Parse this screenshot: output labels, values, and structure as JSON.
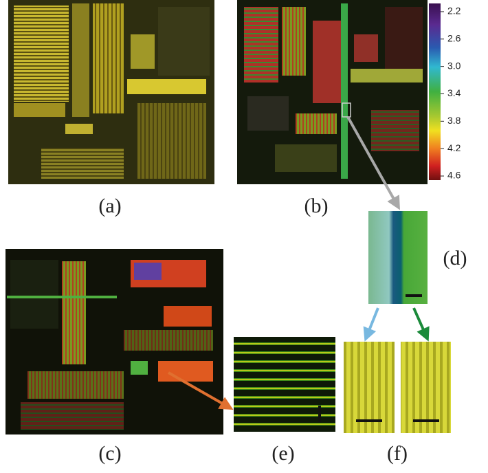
{
  "panels": [
    {
      "label": "(a)"
    },
    {
      "label": "(b)"
    },
    {
      "label": "(c)"
    },
    {
      "label": "(d)"
    },
    {
      "label": "(e)"
    },
    {
      "label": "(f)"
    }
  ],
  "colorbar": {
    "ylim": [
      2.08,
      4.66
    ],
    "ticks": [
      2.2,
      2.6,
      {
        "value": 3,
        "label": "3.0"
      },
      3.4,
      3.8,
      4.2,
      4.6
    ]
  }
}
